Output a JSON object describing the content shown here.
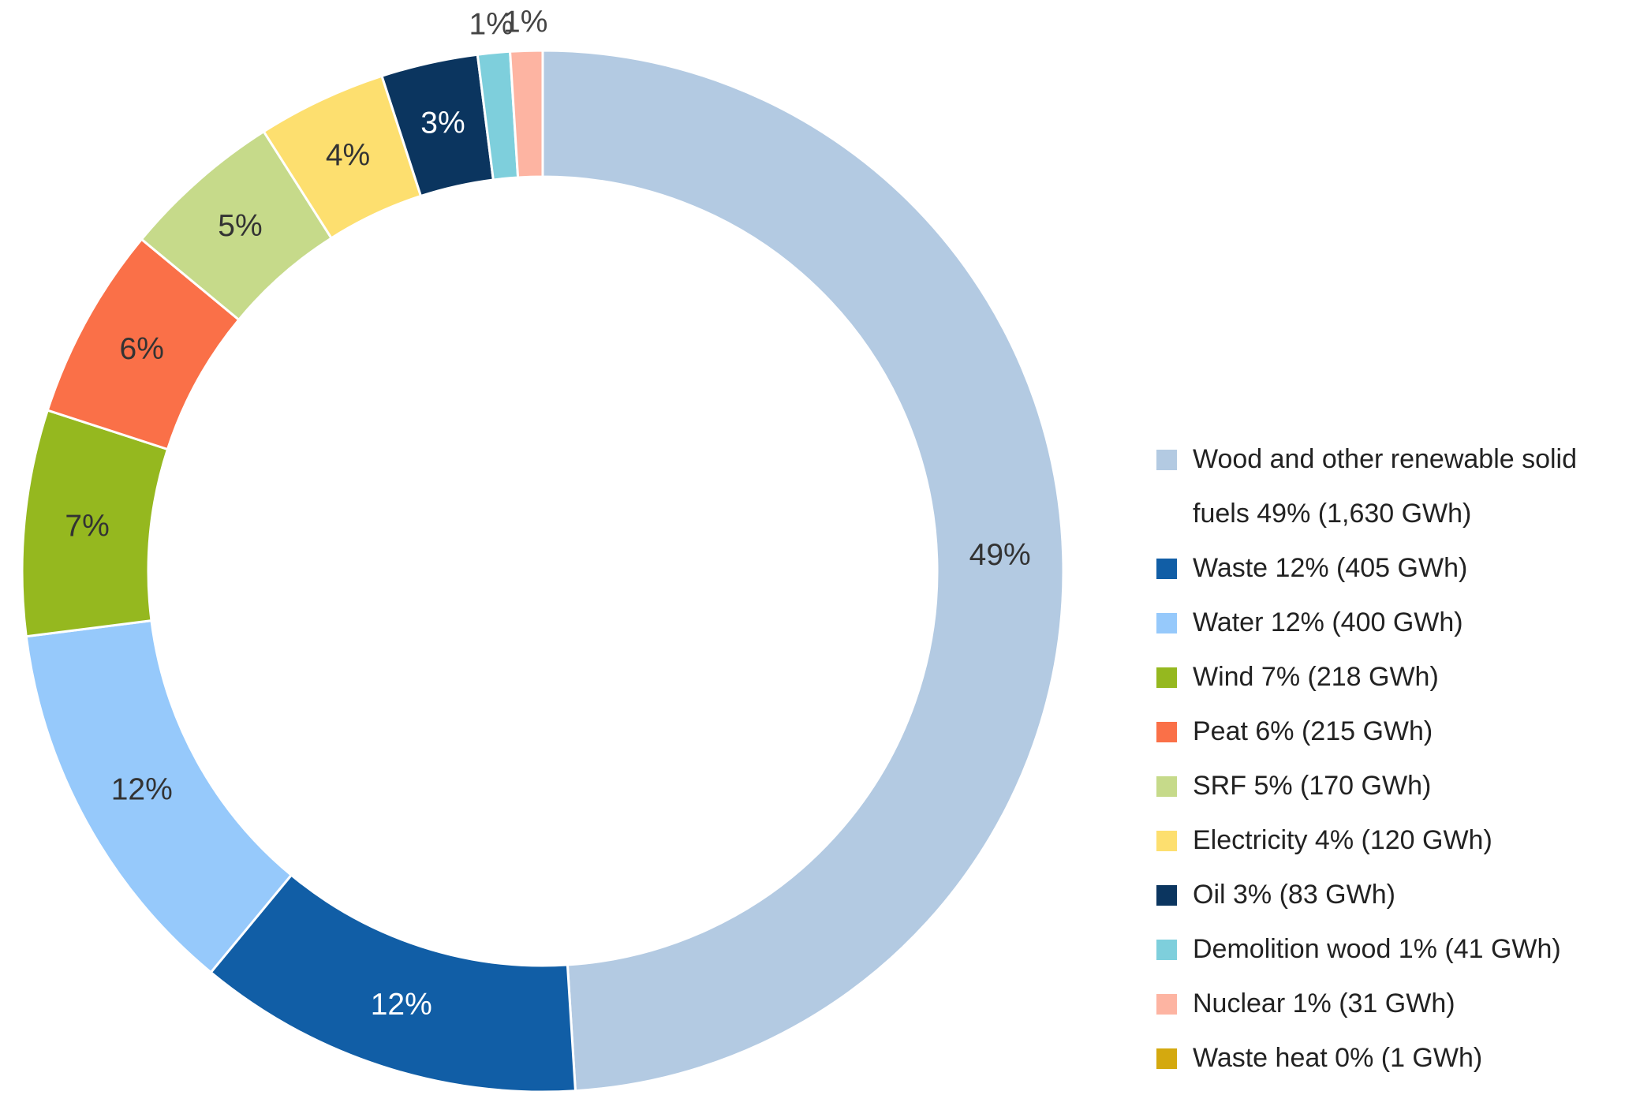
{
  "chart_data": {
    "type": "donut",
    "categories": [
      "Wood and other renewable solid fuels 49% (1,630 GWh)",
      "Waste 12% (405 GWh)",
      "Water 12% (400 GWh)",
      "Wind 7% (218 GWh)",
      "Peat 6% (215 GWh)",
      "SRF 5% (170 GWh)",
      "Electricity 4% (120 GWh)",
      "Oil 3% (83 GWh)",
      "Demolition wood 1% (41 GWh)",
      "Nuclear 1% (31 GWh)",
      "Waste heat 0% (1 GWh)"
    ],
    "values": [
      49,
      12,
      12,
      7,
      6,
      5,
      4,
      3,
      1,
      1,
      0
    ],
    "value_labels": [
      "49%",
      "12%",
      "12%",
      "7%",
      "6%",
      "5%",
      "4%",
      "3%",
      "1%",
      "1%",
      null
    ],
    "colors": [
      "#b3cae2",
      "#115ea6",
      "#96c9fb",
      "#95b81f",
      "#fa7048",
      "#c6da8a",
      "#fddf6f",
      "#0b355f",
      "#7ecfdc",
      "#fdb4a2",
      "#d4a90f"
    ],
    "legend": "right"
  }
}
